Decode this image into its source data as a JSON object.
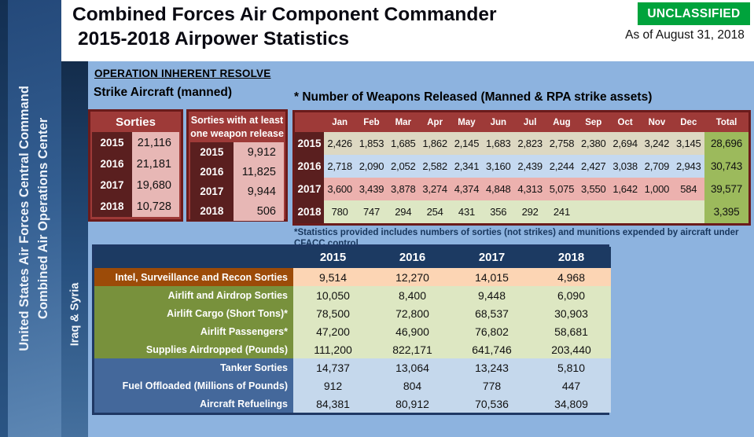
{
  "classification": {
    "badge": "UNCLASSIFIED",
    "as_of": "As of August 31, 2018"
  },
  "title": {
    "line1": "Combined Forces Air Component Commander",
    "line2": "2015-2018 Airpower Statistics"
  },
  "sidebar": {
    "line1": "United States Air Forces Central Command",
    "line2": "Combined Air Operations Center",
    "region_label": "Iraq & Syria"
  },
  "headings": {
    "operation": "OPERATION INHERENT RESOLVE",
    "strike": "Strike Aircraft (manned)",
    "weapons": "* Number of Weapons Released (Manned & RPA strike assets)"
  },
  "sorties_table": {
    "title": "Sorties",
    "rows": [
      [
        "2015",
        "21,116"
      ],
      [
        "2016",
        "21,181"
      ],
      [
        "2017",
        "19,680"
      ],
      [
        "2018",
        "10,728"
      ]
    ]
  },
  "weapon_release_table": {
    "title_line1": "Sorties with at least",
    "title_line2": "one weapon release",
    "rows": [
      [
        "2015",
        "9,912"
      ],
      [
        "2016",
        "11,825"
      ],
      [
        "2017",
        "9,944"
      ],
      [
        "2018",
        "506"
      ]
    ]
  },
  "weapons_released": {
    "columns": [
      "Jan",
      "Feb",
      "Mar",
      "Apr",
      "May",
      "Jun",
      "Jul",
      "Aug",
      "Sep",
      "Oct",
      "Nov",
      "Dec",
      "Total"
    ],
    "rows": [
      {
        "year": "2015",
        "row_color": "#ddd8c2",
        "values": [
          "2,426",
          "1,853",
          "1,685",
          "1,862",
          "2,145",
          "1,683",
          "2,823",
          "2,758",
          "2,380",
          "2,694",
          "3,242",
          "3,145"
        ],
        "total": "28,696"
      },
      {
        "year": "2016",
        "row_color": "#c5d9f0",
        "values": [
          "2,718",
          "2,090",
          "2,052",
          "2,582",
          "2,341",
          "3,160",
          "2,439",
          "2,244",
          "2,427",
          "3,038",
          "2,709",
          "2,943"
        ],
        "total": "30,743"
      },
      {
        "year": "2017",
        "row_color": "#ecb1ae",
        "values": [
          "3,600",
          "3,439",
          "3,878",
          "3,274",
          "4,374",
          "4,848",
          "4,313",
          "5,075",
          "3,550",
          "1,642",
          "1,000",
          "584"
        ],
        "total": "39,577"
      },
      {
        "year": "2018",
        "row_color": "#dde7c4",
        "values": [
          "780",
          "747",
          "294",
          "254",
          "431",
          "356",
          "292",
          "241",
          "",
          "",
          "",
          ""
        ],
        "total": "3,395"
      }
    ],
    "total_cell_color": "#9cba5c",
    "footnote": "*Statistics provided includes numbers of sorties (not strikes) and munitions expended by aircraft under\nCFACC control"
  },
  "support_table": {
    "years": [
      "2015",
      "2016",
      "2017",
      "2018"
    ],
    "rows": [
      {
        "label": "Intel, Surveillance and Recon Sorties",
        "group": "intel",
        "values": [
          "9,514",
          "12,270",
          "14,015",
          "4,968"
        ]
      },
      {
        "label": "Airlift and Airdrop Sorties",
        "group": "airlift",
        "values": [
          "10,050",
          "8,400",
          "9,448",
          "6,090"
        ]
      },
      {
        "label": "Airlift Cargo (Short Tons)*",
        "group": "airlift",
        "values": [
          "78,500",
          "72,800",
          "68,537",
          "30,903"
        ]
      },
      {
        "label": "Airlift Passengers*",
        "group": "airlift",
        "values": [
          "47,200",
          "46,900",
          "76,802",
          "58,681"
        ]
      },
      {
        "label": "Supplies Airdropped (Pounds)",
        "group": "airlift",
        "values": [
          "111,200",
          "822,171",
          "641,746",
          "203,440"
        ]
      },
      {
        "label": "Tanker Sorties",
        "group": "tanker",
        "values": [
          "14,737",
          "13,064",
          "13,243",
          "5,810"
        ]
      },
      {
        "label": "Fuel Offloaded (Millions of Pounds)",
        "group": "tanker",
        "values": [
          "912",
          "804",
          "778",
          "447"
        ]
      },
      {
        "label": "Aircraft Refuelings",
        "group": "tanker",
        "values": [
          "84,381",
          "80,912",
          "70,536",
          "34,809"
        ]
      }
    ],
    "group_colors": {
      "intel": {
        "label": "#9c4b08",
        "cell": "#fcd5b4"
      },
      "airlift": {
        "label": "#78913c",
        "cell": "#dde7c2"
      },
      "tanker": {
        "label": "#44689b",
        "cell": "#c5d8ec"
      }
    }
  },
  "colors": {
    "badge_green": "#00a33c",
    "content_background": "#8db3df",
    "table_header_red": "#9e3a38",
    "year_cell_maroon": "#5a1f1f",
    "pink_value_cell": "#e7b7b5",
    "red_border": "#6b1b1b",
    "navy_border": "#1f3864",
    "support_header_navy": "#1c3a62",
    "footnote_navy": "#17365d"
  }
}
